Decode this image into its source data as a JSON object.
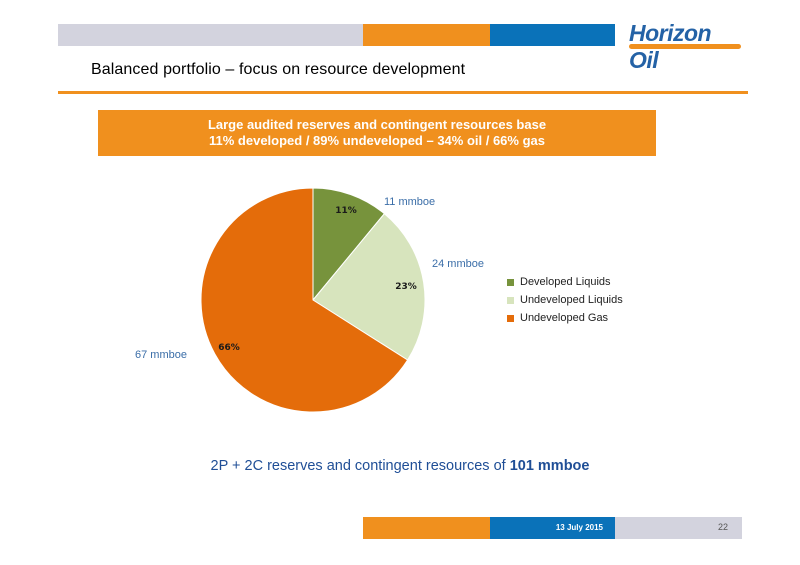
{
  "header": {
    "logo_text": "Horizon Oil",
    "colors": {
      "grey": "#d3d3de",
      "orange": "#f0901e",
      "blue": "#0a72b9"
    }
  },
  "slide": {
    "title": "Balanced portfolio – focus on resource development",
    "banner_line1": "Large audited reserves and contingent  resources base",
    "banner_line2": "11% developed  / 89% undeveloped  –  34% oil / 66% gas",
    "summary_prefix": "2P + 2C reserves and contingent resources of ",
    "summary_bold": "101 mmboe"
  },
  "chart_data": {
    "type": "pie",
    "slices": [
      {
        "label": "Developed Liquids",
        "value": 11,
        "pct_label": "11%",
        "callout": "11 mmboe",
        "color": "#77933c"
      },
      {
        "label": "Undeveloped Liquids",
        "value": 23,
        "pct_label": "23%",
        "callout": "24 mmboe",
        "color": "#d7e4bd"
      },
      {
        "label": "Undeveloped Gas",
        "value": 66,
        "pct_label": "66%",
        "callout": "67 mmboe",
        "color": "#e46c0a"
      }
    ],
    "legend_position": "right"
  },
  "footer": {
    "date": "13 July 2015",
    "page": "22"
  }
}
